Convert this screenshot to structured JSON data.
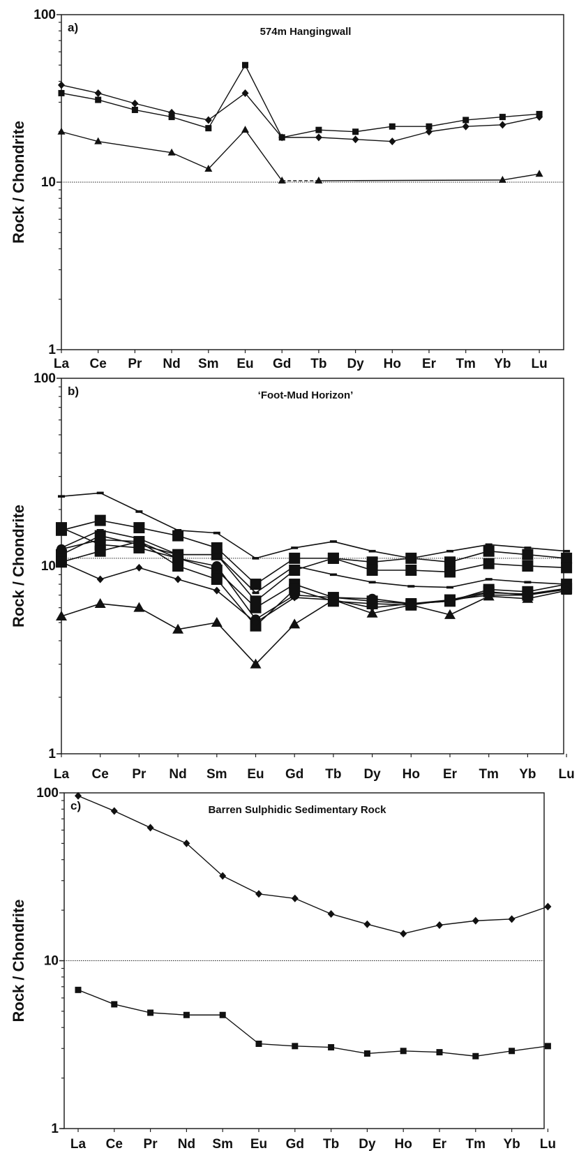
{
  "figure": {
    "categories": [
      "La",
      "Ce",
      "Pr",
      "Nd",
      "Sm",
      "Eu",
      "Gd",
      "Tb",
      "Dy",
      "Ho",
      "Er",
      "Tm",
      "Yb",
      "Lu"
    ],
    "ylabel": "Rock / Chondrite",
    "y_ticks": [
      "1",
      "10",
      "100"
    ],
    "reference_line": 10
  },
  "chart_data": [
    {
      "type": "line",
      "panel_label": "a)",
      "title": "574m Hangingwall",
      "ylabel": "Rock / Chondrite",
      "yscale": "log",
      "ylim": [
        1,
        100
      ],
      "reference_line": 10,
      "categories": [
        "La",
        "Ce",
        "Pr",
        "Nd",
        "Sm",
        "Eu",
        "Gd",
        "Tb",
        "Dy",
        "Ho",
        "Er",
        "Tm",
        "Yb",
        "Lu"
      ],
      "series": [
        {
          "marker": "diamond",
          "values": [
            38,
            34,
            29.5,
            26,
            23.5,
            34,
            18.5,
            18.5,
            18,
            17.5,
            20,
            21.5,
            22,
            24.5
          ]
        },
        {
          "marker": "square",
          "values": [
            34,
            31,
            27,
            24.5,
            21,
            50,
            18.5,
            20.5,
            20,
            21.5,
            21.5,
            23.5,
            24.5,
            25.5
          ]
        },
        {
          "marker": "triangle",
          "values": [
            20,
            17.5,
            null,
            15,
            12,
            20.5,
            10.2,
            10.2,
            null,
            null,
            null,
            null,
            10.3,
            11.2
          ],
          "dashed_segment": [
            "Gd",
            "Tb"
          ]
        }
      ]
    },
    {
      "type": "line",
      "panel_label": "b)",
      "title": "‘Foot-Mud Horizon’",
      "ylabel": "Rock / Chondrite",
      "yscale": "log",
      "ylim": [
        1,
        100
      ],
      "reference_line": 11,
      "categories": [
        "La",
        "Ce",
        "Pr",
        "Nd",
        "Sm",
        "Eu",
        "Gd",
        "Tb",
        "Dy",
        "Ho",
        "Er",
        "Tm",
        "Yb",
        "Lu"
      ],
      "series": [
        {
          "marker": "dash",
          "values": [
            23.5,
            24.5,
            19.5,
            15.5,
            15,
            11,
            12.5,
            13.5,
            12,
            11,
            12,
            13,
            12.5,
            12
          ]
        },
        {
          "marker": "square-large",
          "values": [
            15.5,
            17.5,
            16,
            14.5,
            12.5,
            8,
            11,
            11,
            10.5,
            11,
            10.5,
            12,
            11.5,
            11
          ]
        },
        {
          "marker": "square-large",
          "values": [
            11.5,
            14.5,
            13,
            11.5,
            11.5,
            6.5,
            9.5,
            11,
            9.5,
            9.5,
            9.3,
            10.3,
            10,
            9.8
          ]
        },
        {
          "marker": "square-large",
          "values": [
            16,
            13,
            12.5,
            11,
            9.5,
            6,
            8,
            6.8,
            6.5,
            6.3,
            6.5,
            7.5,
            7.3,
            8
          ]
        },
        {
          "marker": "square-large",
          "values": [
            10.5,
            12,
            13.5,
            10,
            8.5,
            4.8,
            7.5,
            6.5,
            6.3,
            6.2,
            6.6,
            7.3,
            7,
            7.6
          ]
        },
        {
          "marker": "dash",
          "values": [
            12.5,
            15.5,
            14,
            11.5,
            11.5,
            7.2,
            10,
            9,
            8.2,
            7.8,
            7.7,
            8.5,
            8.2,
            8
          ]
        },
        {
          "marker": "circle",
          "values": [
            12.3,
            13.8,
            13.5,
            11,
            10,
            5.2,
            7,
            6.8,
            6.7,
            6.3,
            6.5,
            7.2,
            7.1,
            7.6
          ]
        },
        {
          "marker": "diamond",
          "values": [
            10.5,
            8.5,
            9.8,
            8.5,
            7.4,
            5,
            6.8,
            6.6,
            6,
            6.3,
            6.6,
            7,
            7,
            7.5
          ]
        },
        {
          "marker": "triangle-large",
          "values": [
            5.4,
            6.3,
            6,
            4.6,
            5,
            3,
            4.9,
            6.6,
            5.6,
            6.2,
            5.5,
            6.9,
            6.7,
            7.4
          ]
        }
      ]
    },
    {
      "type": "line",
      "panel_label": "c)",
      "title": "Barren Sulphidic Sedimentary Rock",
      "ylabel": "Rock / Chondrite",
      "yscale": "log",
      "ylim": [
        1,
        100
      ],
      "reference_line": 10,
      "categories": [
        "La",
        "Ce",
        "Pr",
        "Nd",
        "Sm",
        "Eu",
        "Gd",
        "Tb",
        "Dy",
        "Ho",
        "Er",
        "Tm",
        "Yb",
        "Lu"
      ],
      "series": [
        {
          "marker": "diamond",
          "values": [
            96,
            78,
            62,
            50,
            32,
            25,
            23.5,
            19,
            16.5,
            14.5,
            16.3,
            17.3,
            17.7,
            21
          ]
        },
        {
          "marker": "square",
          "values": [
            6.7,
            5.5,
            4.9,
            4.75,
            4.75,
            3.2,
            3.1,
            3.05,
            2.8,
            2.9,
            2.85,
            2.7,
            2.9,
            3.1
          ]
        }
      ]
    }
  ]
}
